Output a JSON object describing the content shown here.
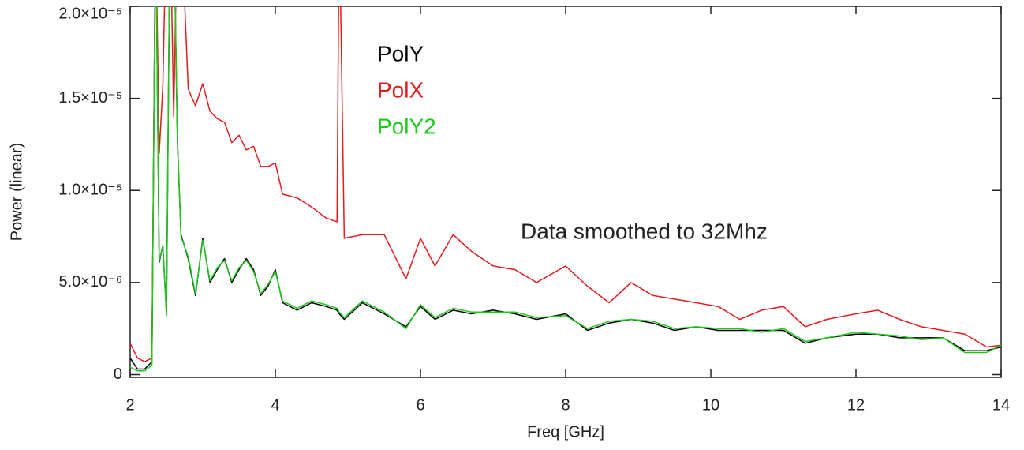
{
  "chart_data": {
    "type": "line",
    "xlabel": "Freq [GHz]",
    "ylabel": "Power (linear)",
    "annotation": "Data smoothed to 32Mhz",
    "x": [
      2.0,
      2.1,
      2.2,
      2.3,
      2.35,
      2.4,
      2.45,
      2.5,
      2.55,
      2.6,
      2.65,
      2.7,
      2.8,
      2.9,
      3.0,
      3.1,
      3.2,
      3.3,
      3.4,
      3.5,
      3.6,
      3.7,
      3.8,
      3.9,
      4.0,
      4.1,
      4.3,
      4.5,
      4.7,
      4.85,
      4.88,
      4.95,
      5.2,
      5.5,
      5.8,
      6.0,
      6.2,
      6.45,
      6.7,
      7.0,
      7.3,
      7.6,
      8.0,
      8.3,
      8.6,
      8.9,
      9.2,
      9.5,
      9.8,
      10.1,
      10.4,
      10.7,
      11.0,
      11.3,
      11.6,
      12.0,
      12.3,
      12.6,
      12.9,
      13.2,
      13.5,
      13.8,
      14.0
    ],
    "series": [
      {
        "name": "PolY",
        "color": "#000000",
        "values": [
          9e-07,
          3e-07,
          3e-07,
          7e-07,
          2.5e-05,
          6.1e-06,
          7e-06,
          3.3e-06,
          2.5e-05,
          2.5e-05,
          1.28e-05,
          7.6e-06,
          6.3e-06,
          4.3e-06,
          7.4e-06,
          5e-06,
          5.7e-06,
          6.3e-06,
          5e-06,
          5.7e-06,
          6.3e-06,
          5.7e-06,
          4.3e-06,
          4.8e-06,
          5.7e-06,
          3.9e-06,
          3.5e-06,
          3.9e-06,
          3.7e-06,
          3.5e-06,
          3.3e-06,
          3e-06,
          3.9e-06,
          3.3e-06,
          2.6e-06,
          3.7e-06,
          3e-06,
          3.5e-06,
          3.3e-06,
          3.5e-06,
          3.3e-06,
          3e-06,
          3.3e-06,
          2.4e-06,
          2.8e-06,
          3e-06,
          2.8e-06,
          2.4e-06,
          2.6e-06,
          2.4e-06,
          2.4e-06,
          2.4e-06,
          2.4e-06,
          1.7e-06,
          2e-06,
          2.2e-06,
          2.2e-06,
          2e-06,
          2e-06,
          2e-06,
          1.3e-06,
          1.3e-06,
          1.5e-06
        ]
      },
      {
        "name": "PolX",
        "color": "#e41a1c",
        "values": [
          1.7e-06,
          9e-07,
          7e-07,
          9e-07,
          2.5e-05,
          1.2e-05,
          1.57e-05,
          2.5e-05,
          2.5e-05,
          1.4e-05,
          2.5e-05,
          2.5e-05,
          1.55e-05,
          1.46e-05,
          1.58e-05,
          1.43e-05,
          1.39e-05,
          1.37e-05,
          1.26e-05,
          1.3e-05,
          1.22e-05,
          1.24e-05,
          1.13e-05,
          1.13e-05,
          1.15e-05,
          9.8e-06,
          9.6e-06,
          9.1e-06,
          8.5e-06,
          8.3e-06,
          2.5e-05,
          7.4e-06,
          7.6e-06,
          7.6e-06,
          5.2e-06,
          7.4e-06,
          5.9e-06,
          7.6e-06,
          6.7e-06,
          5.9e-06,
          5.7e-06,
          5e-06,
          5.9e-06,
          4.8e-06,
          3.9e-06,
          5e-06,
          4.3e-06,
          4.1e-06,
          3.9e-06,
          3.7e-06,
          3e-06,
          3.5e-06,
          3.7e-06,
          2.6e-06,
          3e-06,
          3.3e-06,
          3.5e-06,
          3e-06,
          2.6e-06,
          2.4e-06,
          2.2e-06,
          1.5e-06,
          1.6e-06
        ]
      },
      {
        "name": "PolY2",
        "color": "#1ec81e",
        "values": [
          4e-07,
          2e-07,
          2e-07,
          5e-07,
          2.5e-05,
          6.2e-06,
          7e-06,
          3.2e-06,
          2.5e-05,
          2.5e-05,
          1.3e-05,
          7.5e-06,
          6.4e-06,
          4.4e-06,
          7.3e-06,
          5.1e-06,
          5.8e-06,
          6.2e-06,
          5.1e-06,
          5.8e-06,
          6.2e-06,
          5.6e-06,
          4.4e-06,
          4.9e-06,
          5.6e-06,
          4e-06,
          3.6e-06,
          4e-06,
          3.8e-06,
          3.6e-06,
          3.4e-06,
          3.1e-06,
          4e-06,
          3.4e-06,
          2.5e-06,
          3.8e-06,
          3.1e-06,
          3.6e-06,
          3.4e-06,
          3.4e-06,
          3.4e-06,
          3.1e-06,
          3.2e-06,
          2.5e-06,
          2.9e-06,
          3e-06,
          2.9e-06,
          2.5e-06,
          2.6e-06,
          2.5e-06,
          2.5e-06,
          2.3e-06,
          2.5e-06,
          1.8e-06,
          2e-06,
          2.3e-06,
          2.2e-06,
          2.1e-06,
          1.9e-06,
          2e-06,
          1.2e-06,
          1.2e-06,
          1.6e-06
        ]
      }
    ],
    "xlim": [
      2,
      14
    ],
    "xticks": [
      2,
      4,
      6,
      8,
      10,
      12,
      14
    ],
    "ylim": [
      -1.5e-07,
      2e-05
    ],
    "yticks": [
      0,
      {
        "value": 5e-06,
        "label": "5.0×10⁻⁶"
      },
      {
        "value": 1e-05,
        "label": "1.0×10⁻⁵"
      },
      {
        "value": 1.5e-05,
        "label": "1.5×10⁻⁵"
      },
      {
        "value": 2e-05,
        "label": "2.0×10⁻⁵"
      }
    ]
  }
}
